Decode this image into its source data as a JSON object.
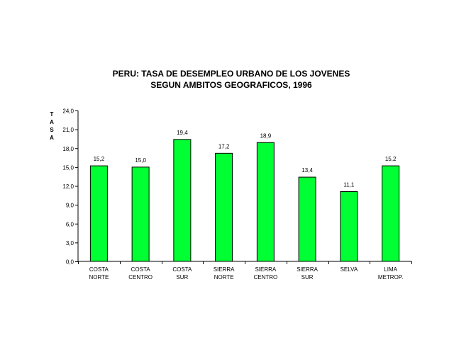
{
  "chart_data": {
    "type": "bar",
    "title_lines": [
      "PERU: TASA DE DESEMPLEO URBANO DE LOS JOVENES",
      "SEGUN AMBITOS GEOGRAFICOS, 1996"
    ],
    "ylabel": "TASA",
    "xlabel": "",
    "ylim": [
      0,
      24
    ],
    "ytick_values": [
      0,
      3,
      6,
      9,
      12,
      15,
      18,
      21,
      24
    ],
    "ytick_labels": [
      "0,0",
      "3,0",
      "6,0",
      "9,0",
      "12,0",
      "15,0",
      "18,0",
      "21,0",
      "24,0"
    ],
    "categories": [
      [
        "COSTA",
        "NORTE"
      ],
      [
        "COSTA",
        "CENTRO"
      ],
      [
        "COSTA",
        "SUR"
      ],
      [
        "SIERRA",
        "NORTE"
      ],
      [
        "SIERRA",
        "CENTRO"
      ],
      [
        "SIERRA",
        "SUR"
      ],
      [
        "SELVA"
      ],
      [
        "LIMA",
        "METROP."
      ]
    ],
    "values": [
      15.2,
      15.0,
      19.4,
      17.2,
      18.9,
      13.4,
      11.1,
      15.2
    ],
    "value_labels": [
      "15,2",
      "15,0",
      "19,4",
      "17,2",
      "18,9",
      "13,4",
      "11,1",
      "15,2"
    ],
    "bar_color": "#00ff33",
    "grid": false,
    "legend": "none"
  }
}
